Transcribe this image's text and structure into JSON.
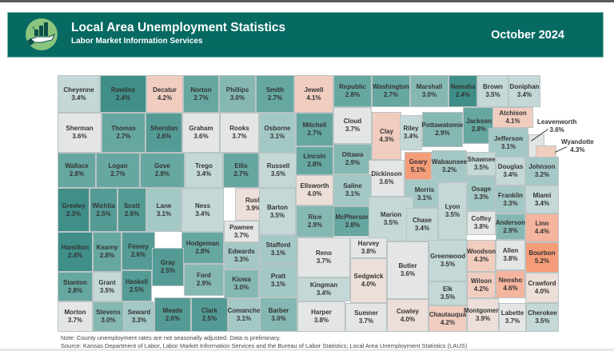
{
  "header": {
    "title": "Local Area Unemployment Statistics",
    "subtitle": "Labor Market Information Services",
    "period": "October 2024",
    "logo_icon": "hand-with-chart-icon"
  },
  "colors": {
    "banner": "#066a63",
    "scale": [
      {
        "max": 2.4,
        "color": "#3f8f88"
      },
      {
        "max": 2.6,
        "color": "#549b95"
      },
      {
        "max": 2.8,
        "color": "#67a7a1"
      },
      {
        "max": 3.0,
        "color": "#86b8b3"
      },
      {
        "max": 3.3,
        "color": "#a4c8c5"
      },
      {
        "max": 3.5,
        "color": "#c3d8d7"
      },
      {
        "max": 3.8,
        "color": "#e4e6e6"
      },
      {
        "max": 4.0,
        "color": "#ecded8"
      },
      {
        "max": 4.3,
        "color": "#f1cdc0"
      },
      {
        "max": 4.6,
        "color": "#f5b49e"
      },
      {
        "max": 9.9,
        "color": "#f59c78"
      }
    ]
  },
  "chart_data": {
    "type": "choropleth",
    "title": "Local Area Unemployment Statistics - October 2024",
    "region": "Kansas counties",
    "unit": "percent",
    "counties": [
      {
        "name": "Cheyenne",
        "rate": "3.4%"
      },
      {
        "name": "Rawlins",
        "rate": "2.4%"
      },
      {
        "name": "Decatur",
        "rate": "4.2%"
      },
      {
        "name": "Norton",
        "rate": "2.7%"
      },
      {
        "name": "Phillips",
        "rate": "3.0%"
      },
      {
        "name": "Smith",
        "rate": "2.7%"
      },
      {
        "name": "Jewell",
        "rate": "4.1%"
      },
      {
        "name": "Republic",
        "rate": "2.8%"
      },
      {
        "name": "Washington",
        "rate": "2.7%"
      },
      {
        "name": "Marshall",
        "rate": "3.0%"
      },
      {
        "name": "Nemaha",
        "rate": "2.4%"
      },
      {
        "name": "Brown",
        "rate": "3.5%"
      },
      {
        "name": "Doniphan",
        "rate": "3.4%"
      },
      {
        "name": "Sherman",
        "rate": "3.6%"
      },
      {
        "name": "Thomas",
        "rate": "2.7%"
      },
      {
        "name": "Sheridan",
        "rate": "2.6%"
      },
      {
        "name": "Graham",
        "rate": "3.6%"
      },
      {
        "name": "Rooks",
        "rate": "3.7%"
      },
      {
        "name": "Osborne",
        "rate": "3.1%"
      },
      {
        "name": "Mitchell",
        "rate": "2.7%"
      },
      {
        "name": "Cloud",
        "rate": "3.7%"
      },
      {
        "name": "Clay",
        "rate": "4.3%"
      },
      {
        "name": "Riley",
        "rate": "3.4%"
      },
      {
        "name": "Pottawatomie",
        "rate": "2.9%"
      },
      {
        "name": "Jackson",
        "rate": "2.8%"
      },
      {
        "name": "Atchison",
        "rate": "4.1%"
      },
      {
        "name": "Jefferson",
        "rate": "3.1%"
      },
      {
        "name": "Leavenworth",
        "rate": "3.6%"
      },
      {
        "name": "Wyandotte",
        "rate": "4.3%"
      },
      {
        "name": "Wallace",
        "rate": "2.8%"
      },
      {
        "name": "Logan",
        "rate": "2.7%"
      },
      {
        "name": "Gove",
        "rate": "2.8%"
      },
      {
        "name": "Trego",
        "rate": "3.4%"
      },
      {
        "name": "Ellis",
        "rate": "2.7%"
      },
      {
        "name": "Russell",
        "rate": "3.5%"
      },
      {
        "name": "Lincoln",
        "rate": "2.8%"
      },
      {
        "name": "Ottawa",
        "rate": "2.9%"
      },
      {
        "name": "Dickinson",
        "rate": "3.6%"
      },
      {
        "name": "Geary",
        "rate": "5.1%"
      },
      {
        "name": "Wabaunsee",
        "rate": "3.2%"
      },
      {
        "name": "Shawnee",
        "rate": "3.5%"
      },
      {
        "name": "Douglas",
        "rate": "3.4%"
      },
      {
        "name": "Johnson",
        "rate": "3.2%"
      },
      {
        "name": "Greeley",
        "rate": "2.3%"
      },
      {
        "name": "Wichita",
        "rate": "2.5%"
      },
      {
        "name": "Scott",
        "rate": "2.6%"
      },
      {
        "name": "Lane",
        "rate": "3.1%"
      },
      {
        "name": "Ness",
        "rate": "3.4%"
      },
      {
        "name": "Rush",
        "rate": "3.9%"
      },
      {
        "name": "Barton",
        "rate": "3.5%"
      },
      {
        "name": "Ellsworth",
        "rate": "4.0%"
      },
      {
        "name": "Saline",
        "rate": "3.1%"
      },
      {
        "name": "Morris",
        "rate": "3.1%"
      },
      {
        "name": "Osage",
        "rate": "3.3%"
      },
      {
        "name": "Franklin",
        "rate": "3.3%"
      },
      {
        "name": "Miami",
        "rate": "3.4%"
      },
      {
        "name": "Rice",
        "rate": "2.9%"
      },
      {
        "name": "McPherson",
        "rate": "2.8%"
      },
      {
        "name": "Marion",
        "rate": "3.5%"
      },
      {
        "name": "Chase",
        "rate": "3.4%"
      },
      {
        "name": "Lyon",
        "rate": "3.5%"
      },
      {
        "name": "Coffey",
        "rate": "3.8%"
      },
      {
        "name": "Anderson",
        "rate": "2.9%"
      },
      {
        "name": "Linn",
        "rate": "4.4%"
      },
      {
        "name": "Hamilton",
        "rate": "2.4%"
      },
      {
        "name": "Kearny",
        "rate": "2.8%"
      },
      {
        "name": "Finney",
        "rate": "2.6%"
      },
      {
        "name": "Hodgeman",
        "rate": "2.8%"
      },
      {
        "name": "Pawnee",
        "rate": "3.7%"
      },
      {
        "name": "Edwards",
        "rate": "3.3%"
      },
      {
        "name": "Stafford",
        "rate": "3.1%"
      },
      {
        "name": "Reno",
        "rate": "3.7%"
      },
      {
        "name": "Harvey",
        "rate": "3.8%"
      },
      {
        "name": "Butler",
        "rate": "3.6%"
      },
      {
        "name": "Greenwood",
        "rate": "3.5%"
      },
      {
        "name": "Woodson",
        "rate": "4.3%"
      },
      {
        "name": "Allen",
        "rate": "3.8%"
      },
      {
        "name": "Bourbon",
        "rate": "5.2%"
      },
      {
        "name": "Gray",
        "rate": "2.5%"
      },
      {
        "name": "Ford",
        "rate": "2.9%"
      },
      {
        "name": "Kiowa",
        "rate": "3.0%"
      },
      {
        "name": "Pratt",
        "rate": "3.1%"
      },
      {
        "name": "Kingman",
        "rate": "3.4%"
      },
      {
        "name": "Sedgwick",
        "rate": "4.0%"
      },
      {
        "name": "Stanton",
        "rate": "2.8%"
      },
      {
        "name": "Grant",
        "rate": "3.5%"
      },
      {
        "name": "Haskell",
        "rate": "2.5%"
      },
      {
        "name": "Wilson",
        "rate": "4.2%"
      },
      {
        "name": "Neosho",
        "rate": "4.6%"
      },
      {
        "name": "Crawford",
        "rate": "4.0%"
      },
      {
        "name": "Elk",
        "rate": "3.5%"
      },
      {
        "name": "Morton",
        "rate": "3.7%"
      },
      {
        "name": "Stevens",
        "rate": "3.0%"
      },
      {
        "name": "Seward",
        "rate": "3.3%"
      },
      {
        "name": "Meade",
        "rate": "2.6%"
      },
      {
        "name": "Clark",
        "rate": "2.5%"
      },
      {
        "name": "Comanche",
        "rate": "3.1%"
      },
      {
        "name": "Barber",
        "rate": "3.0%"
      },
      {
        "name": "Harper",
        "rate": "3.8%"
      },
      {
        "name": "Sumner",
        "rate": "3.7%"
      },
      {
        "name": "Cowley",
        "rate": "4.0%"
      },
      {
        "name": "Chautauqua",
        "rate": "4.2%"
      },
      {
        "name": "Montgomery",
        "rate": "3.9%"
      },
      {
        "name": "Labette",
        "rate": "3.7%"
      },
      {
        "name": "Cherokee",
        "rate": "3.5%"
      }
    ]
  },
  "footer": {
    "note": "Note: County unemployment rates are not seasonally adjusted. Data is preliminary.",
    "source": "Source: Kansas Department of Labor, Labor Market Information Services and the Bureau of Labor Statistics; Local Area Unemployment Statistics (LAUS)"
  }
}
